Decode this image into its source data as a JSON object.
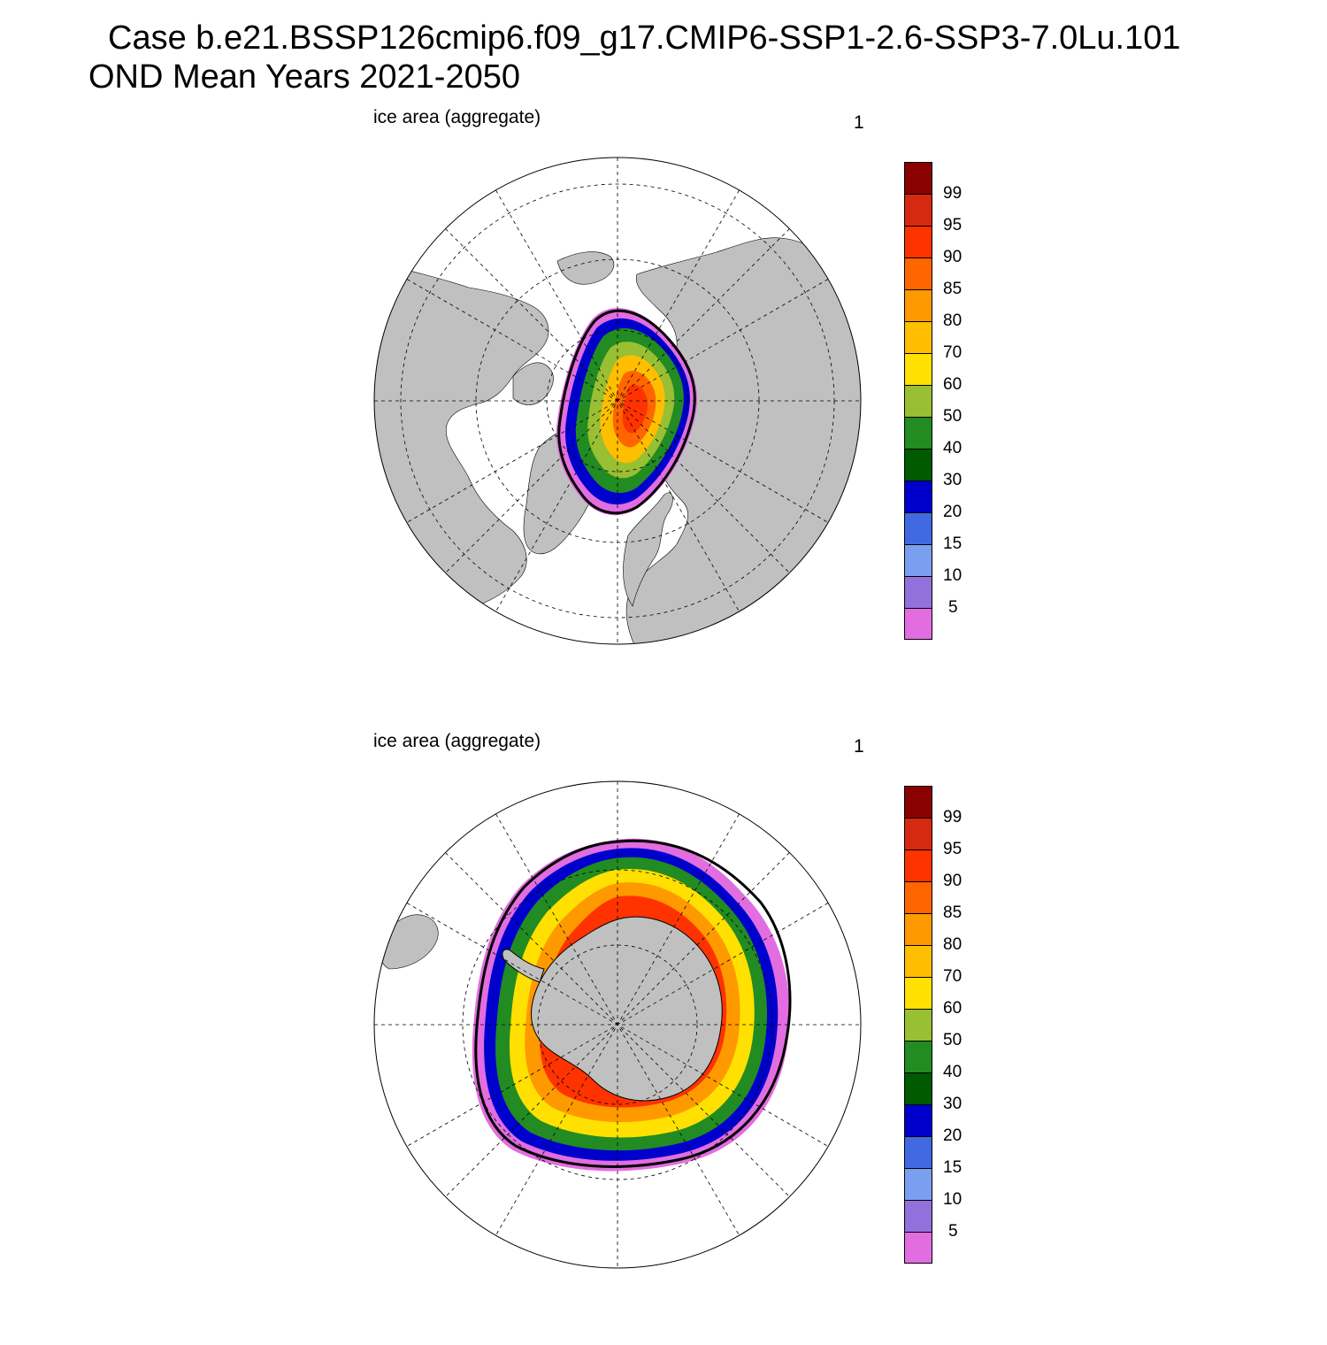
{
  "title": {
    "line1": "Case b.e21.BSSP126cmip6.f09_g17.CMIP6-SSP1-2.6-SSP3-7.0Lu.101",
    "line2": "OND Mean   Years 2021-2050"
  },
  "panels": [
    {
      "id": "nh",
      "left_label": "ice area  (aggregate)",
      "right_label": "1",
      "hemisphere": "north"
    },
    {
      "id": "sh",
      "left_label": "ice area  (aggregate)",
      "right_label": "1",
      "hemisphere": "south"
    }
  ],
  "colorbar": {
    "labels": [
      "99",
      "95",
      "90",
      "85",
      "80",
      "70",
      "60",
      "50",
      "40",
      "30",
      "20",
      "15",
      "10",
      "5"
    ],
    "colors": [
      "#8b0000",
      "#d62a10",
      "#ff3300",
      "#ff6600",
      "#ff9900",
      "#ffbf00",
      "#ffe000",
      "#99bf33",
      "#228b22",
      "#005a00",
      "#0000cd",
      "#4169e1",
      "#7b9ff0",
      "#9370db",
      "#e26de0"
    ]
  },
  "colors": {
    "land": "#c0c0c0",
    "ocean": "#ffffff",
    "extent_line": "#000000"
  }
}
